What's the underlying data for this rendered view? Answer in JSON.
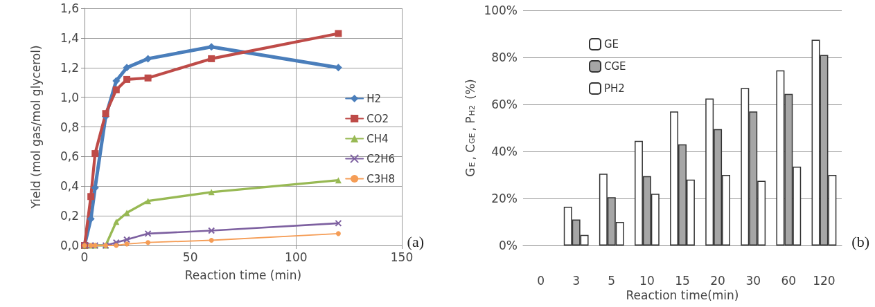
{
  "chart_data": [
    {
      "type": "line",
      "xlabel": "Reaction time (min)",
      "ylabel": "Yield (mol gas/mol glycerol)",
      "x": [
        0,
        3,
        5,
        10,
        15,
        20,
        30,
        60,
        120
      ],
      "series": [
        {
          "name": "H2",
          "color": "#4a7ebb",
          "marker": "diamond",
          "values": [
            0,
            0.18,
            0.39,
            0.87,
            1.11,
            1.2,
            1.26,
            1.34,
            1.2
          ]
        },
        {
          "name": "CO2",
          "color": "#be4b48",
          "marker": "square",
          "values": [
            0,
            0.33,
            0.62,
            0.89,
            1.05,
            1.12,
            1.13,
            1.26,
            1.43
          ]
        },
        {
          "name": "CH4",
          "color": "#98b954",
          "marker": "triangle",
          "values": [
            0,
            0,
            0,
            0,
            0.16,
            0.22,
            0.3,
            0.36,
            0.44
          ]
        },
        {
          "name": "C2H6",
          "color": "#7d60a0",
          "marker": "cross",
          "values": [
            0,
            0,
            0,
            0,
            0.02,
            0.04,
            0.08,
            0.1,
            0.15
          ]
        },
        {
          "name": "C3H8",
          "color": "#f59d56",
          "marker": "circle",
          "values": [
            0,
            0,
            0,
            0,
            0,
            0.01,
            0.02,
            0.035,
            0.08
          ]
        }
      ],
      "xlim": [
        0,
        150
      ],
      "xticks": [
        0,
        50,
        100,
        150
      ],
      "ylim": [
        0,
        1.6
      ],
      "yticks": [
        {
          "value": 0,
          "label": "0,0"
        },
        {
          "value": 0.2,
          "label": "0,2"
        },
        {
          "value": 0.4,
          "label": "0,4"
        },
        {
          "value": 0.6,
          "label": "0,6"
        },
        {
          "value": 0.8,
          "label": "0,8"
        },
        {
          "value": 1.0,
          "label": "1,0"
        },
        {
          "value": 1.2,
          "label": "1,2"
        },
        {
          "value": 1.4,
          "label": "1,4"
        },
        {
          "value": 1.6,
          "label": "1,6"
        }
      ],
      "grid": true,
      "legend": "right",
      "annotations": [
        "(a)"
      ]
    },
    {
      "type": "bar",
      "xlabel": "Reaction time(min)",
      "ylabel": "G$_{E}$, C$_{GE}$, P$_{H2}$ (%)",
      "categories": [
        "0",
        "3",
        "5",
        "10",
        "15",
        "20",
        "30",
        "60",
        "120"
      ],
      "series": [
        {
          "name": "GE",
          "color": "#ffffff",
          "values": [
            null,
            16.5,
            30.5,
            44.5,
            57,
            62.5,
            67,
            74.5,
            87.5
          ]
        },
        {
          "name": "CGE",
          "color": "#a6a6a6",
          "values": [
            null,
            11,
            20.5,
            29.5,
            43,
            49.5,
            57,
            64.5,
            81
          ]
        },
        {
          "name": "PH2",
          "color": "#ffffff",
          "values": [
            null,
            4.5,
            10,
            22,
            28,
            30,
            27.5,
            33.5,
            30
          ]
        }
      ],
      "ylim": [
        0,
        100
      ],
      "yticks": [
        {
          "value": 0,
          "label": "0%"
        },
        {
          "value": 20,
          "label": "20%"
        },
        {
          "value": 40,
          "label": "40%"
        },
        {
          "value": 60,
          "label": "60%"
        },
        {
          "value": 80,
          "label": "80%"
        },
        {
          "value": 100,
          "label": "100%"
        }
      ],
      "grid": "y",
      "legend": "top left",
      "annotations": [
        "(b)"
      ]
    }
  ]
}
